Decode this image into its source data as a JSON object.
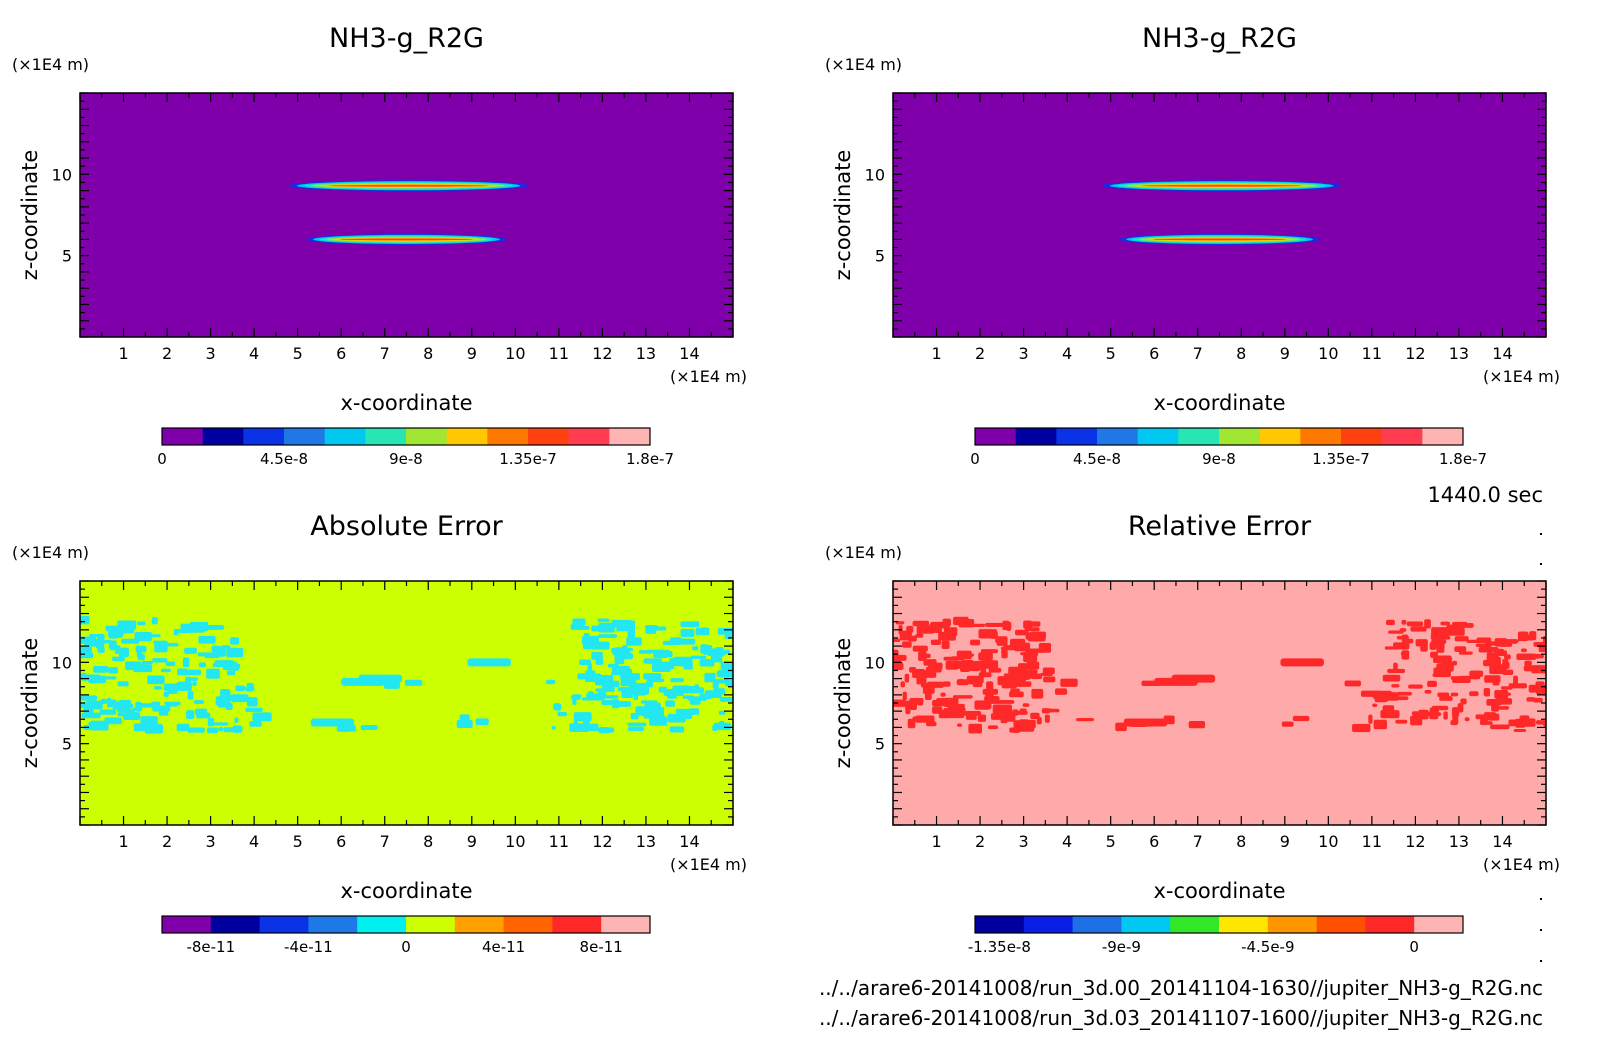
{
  "time_label": "1440.0 sec",
  "files": [
    "../../arare6-20141008/run_3d.00_20141104-1630//jupiter_NH3-g_R2G.nc",
    "../../arare6-20141008/run_3d.03_20141107-1600//jupiter_NH3-g_R2G.nc"
  ],
  "chart_data": [
    {
      "type": "heatmap",
      "title": "NH3-g_R2G",
      "xlabel": "x-coordinate",
      "ylabel": "z-coordinate",
      "x_unit": "(×1E4 m)",
      "y_unit": "(×1E4 m)",
      "xlim": [
        0,
        15
      ],
      "ylim": [
        0,
        15
      ],
      "xticks": [
        "1",
        "2",
        "3",
        "4",
        "5",
        "6",
        "7",
        "8",
        "9",
        "10",
        "11",
        "12",
        "13",
        "14"
      ],
      "yticks": [
        "5",
        "10"
      ],
      "background_color": "#7f00aa",
      "bands": [
        {
          "x": [
            4.8,
            10.3
          ],
          "z": 9.3,
          "peak": 1.8e-07
        },
        {
          "x": [
            5.2,
            9.8
          ],
          "z": 6.0,
          "peak": 1.2e-07
        }
      ],
      "colorbar": {
        "colors": [
          "#7f00aa",
          "#0000a0",
          "#0a32e6",
          "#1e78e6",
          "#00c8f0",
          "#28e6b4",
          "#a0e632",
          "#ffc800",
          "#ff7800",
          "#ff4010",
          "#ff3c50",
          "#ffb4b4"
        ],
        "labels": [
          "0",
          "4.5e-8",
          "9e-8",
          "1.35e-7",
          "1.8e-7"
        ],
        "label_positions": [
          0,
          3,
          6,
          9,
          12
        ]
      }
    },
    {
      "type": "heatmap",
      "title": "NH3-g_R2G",
      "xlabel": "x-coordinate",
      "ylabel": "z-coordinate",
      "x_unit": "(×1E4 m)",
      "y_unit": "(×1E4 m)",
      "xlim": [
        0,
        15
      ],
      "ylim": [
        0,
        15
      ],
      "xticks": [
        "1",
        "2",
        "3",
        "4",
        "5",
        "6",
        "7",
        "8",
        "9",
        "10",
        "11",
        "12",
        "13",
        "14"
      ],
      "yticks": [
        "5",
        "10"
      ],
      "background_color": "#7f00aa",
      "bands": [
        {
          "x": [
            4.8,
            10.3
          ],
          "z": 9.3,
          "peak": 1.8e-07
        },
        {
          "x": [
            5.2,
            9.8
          ],
          "z": 6.0,
          "peak": 1.2e-07
        }
      ],
      "colorbar": {
        "colors": [
          "#7f00aa",
          "#0000a0",
          "#0a32e6",
          "#1e78e6",
          "#00c8f0",
          "#28e6b4",
          "#a0e632",
          "#ffc800",
          "#ff7800",
          "#ff4010",
          "#ff3c50",
          "#ffb4b4"
        ],
        "labels": [
          "0",
          "4.5e-8",
          "9e-8",
          "1.35e-7",
          "1.8e-7"
        ],
        "label_positions": [
          0,
          3,
          6,
          9,
          12
        ]
      }
    },
    {
      "type": "heatmap",
      "title": "Absolute Error",
      "xlabel": "x-coordinate",
      "ylabel": "z-coordinate",
      "x_unit": "(×1E4 m)",
      "y_unit": "(×1E4 m)",
      "xlim": [
        0,
        15
      ],
      "ylim": [
        0,
        15
      ],
      "xticks": [
        "1",
        "2",
        "3",
        "4",
        "5",
        "6",
        "7",
        "8",
        "9",
        "10",
        "11",
        "12",
        "13",
        "14"
      ],
      "yticks": [
        "5",
        "10"
      ],
      "background_color": "#ccff00",
      "pattern_color": "#22e6f0",
      "pattern_z_range": [
        5.8,
        12.6
      ],
      "colorbar": {
        "colors": [
          "#7f00aa",
          "#0000a0",
          "#0a32e6",
          "#1e78e6",
          "#00f0f0",
          "#ccff00",
          "#ffa000",
          "#ff6400",
          "#ff2828",
          "#ffb4b4"
        ],
        "labels": [
          "-8e-11",
          "-4e-11",
          "0",
          "4e-11",
          "8e-11"
        ],
        "label_positions": [
          1,
          3,
          5,
          7,
          9
        ]
      }
    },
    {
      "type": "heatmap",
      "title": "Relative Error",
      "xlabel": "x-coordinate",
      "ylabel": "z-coordinate",
      "x_unit": "(×1E4 m)",
      "y_unit": "(×1E4 m)",
      "xlim": [
        0,
        15
      ],
      "ylim": [
        0,
        15
      ],
      "xticks": [
        "1",
        "2",
        "3",
        "4",
        "5",
        "6",
        "7",
        "8",
        "9",
        "10",
        "11",
        "12",
        "13",
        "14"
      ],
      "yticks": [
        "5",
        "10"
      ],
      "background_color": "#ffaaaa",
      "pattern_color": "#ff2828",
      "pattern_z_range": [
        5.8,
        12.6
      ],
      "colorbar": {
        "colors": [
          "#0000a0",
          "#0a1ee6",
          "#1e6ee6",
          "#00c8f0",
          "#32e628",
          "#ffe600",
          "#ff9600",
          "#ff5000",
          "#ff2828",
          "#ffb4b4"
        ],
        "labels": [
          "-1.35e-8",
          "-9e-9",
          "-4.5e-9",
          "0"
        ],
        "label_positions": [
          0.5,
          3,
          6,
          9
        ]
      }
    }
  ]
}
